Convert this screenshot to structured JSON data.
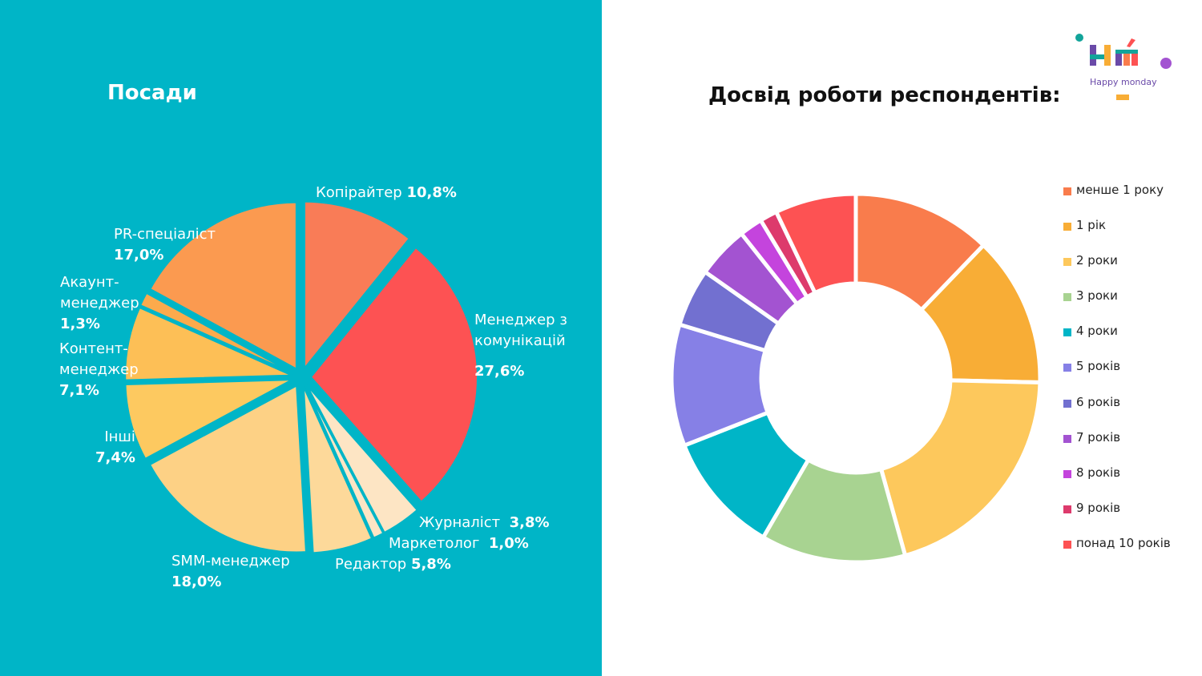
{
  "left": {
    "title": "Посади",
    "background": "#00b5c7"
  },
  "right": {
    "title": "Досвід роботи респондентів:"
  },
  "logo": {
    "tagline": "Happy monday"
  },
  "chart_data": [
    {
      "type": "pie",
      "title": "Посади",
      "series": [
        {
          "name": "Копірайтер",
          "value": 10.8,
          "label": "10,8%",
          "color": "#f97c57",
          "order": 0
        },
        {
          "name": "Менеджер з комунікацій",
          "value": 27.6,
          "label": "27,6%",
          "color": "#fd5253",
          "order": 1
        },
        {
          "name": "Журналіст",
          "value": 3.8,
          "label": "3,8%",
          "color": "#fde5c4",
          "order": 2
        },
        {
          "name": "Маркетолог",
          "value": 1.0,
          "label": "1,0%",
          "color": "#fde5c4",
          "order": 3
        },
        {
          "name": "Редактор",
          "value": 5.8,
          "label": "5,8%",
          "color": "#fdd99a",
          "order": 4
        },
        {
          "name": "SMM-менеджер",
          "value": 18.0,
          "label": "18,0%",
          "color": "#fdd185",
          "order": 5
        },
        {
          "name": "Інші",
          "value": 7.4,
          "label": "7,4%",
          "color": "#fdc960",
          "order": 6
        },
        {
          "name": "Контент-менеджер",
          "value": 7.1,
          "label": "7,1%",
          "color": "#fdbf56",
          "order": 7
        },
        {
          "name": "Акаунт-менеджер",
          "value": 1.3,
          "label": "1,3%",
          "color": "#fbaa4c",
          "order": 8
        },
        {
          "name": "PR-спеціаліст",
          "value": 17.0,
          "label": "17,0%",
          "color": "#fb9a50",
          "order": 9
        }
      ]
    },
    {
      "type": "pie",
      "subtype": "donut",
      "title": "Досвід роботи респондентів:",
      "legend": "right",
      "series": [
        {
          "name": "менше 1 року",
          "value": 12.0,
          "color": "#f97c4c"
        },
        {
          "name": "1 рік",
          "value": 13.0,
          "color": "#f8ad36"
        },
        {
          "name": "2 роки",
          "value": 20.0,
          "color": "#fdc85c"
        },
        {
          "name": "3 роки",
          "value": 12.5,
          "color": "#a8d391"
        },
        {
          "name": "4 роки",
          "value": 10.5,
          "color": "#00b5c7"
        },
        {
          "name": "5 років",
          "value": 10.5,
          "color": "#8680e6"
        },
        {
          "name": "6 років",
          "value": 5.0,
          "color": "#7270d0"
        },
        {
          "name": "7 років",
          "value": 4.5,
          "color": "#a353d1"
        },
        {
          "name": "8 років",
          "value": 2.0,
          "color": "#c444dd"
        },
        {
          "name": "9 років",
          "value": 1.5,
          "color": "#dd3a6c"
        },
        {
          "name": "понад 10 років",
          "value": 7.0,
          "color": "#fd5253"
        }
      ]
    }
  ]
}
